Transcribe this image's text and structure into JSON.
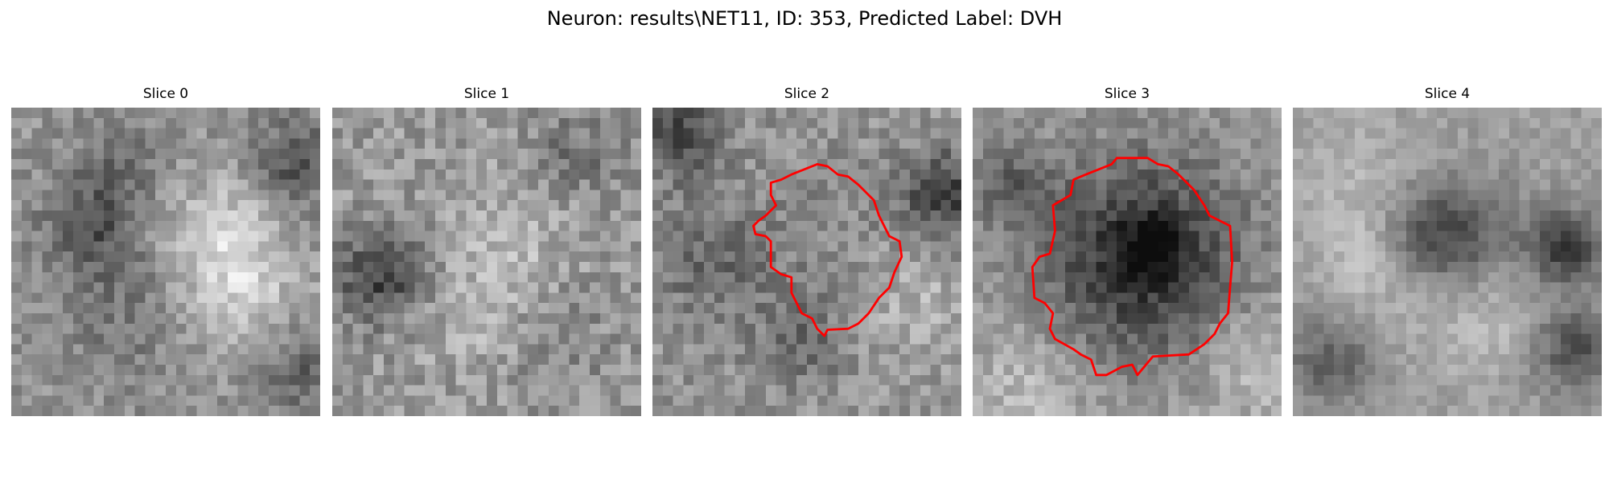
{
  "figure": {
    "title": "Neuron: results\\NET11, ID: 353, Predicted Label: DVH"
  },
  "panels": [
    {
      "title": "Slice 0",
      "contour": false
    },
    {
      "title": "Slice 1",
      "contour": false
    },
    {
      "title": "Slice 2",
      "contour": true
    },
    {
      "title": "Slice 3",
      "contour": true
    },
    {
      "title": "Slice 4",
      "contour": false
    }
  ],
  "colors": {
    "contour": "#ff0000",
    "colormap": "grayscale"
  }
}
